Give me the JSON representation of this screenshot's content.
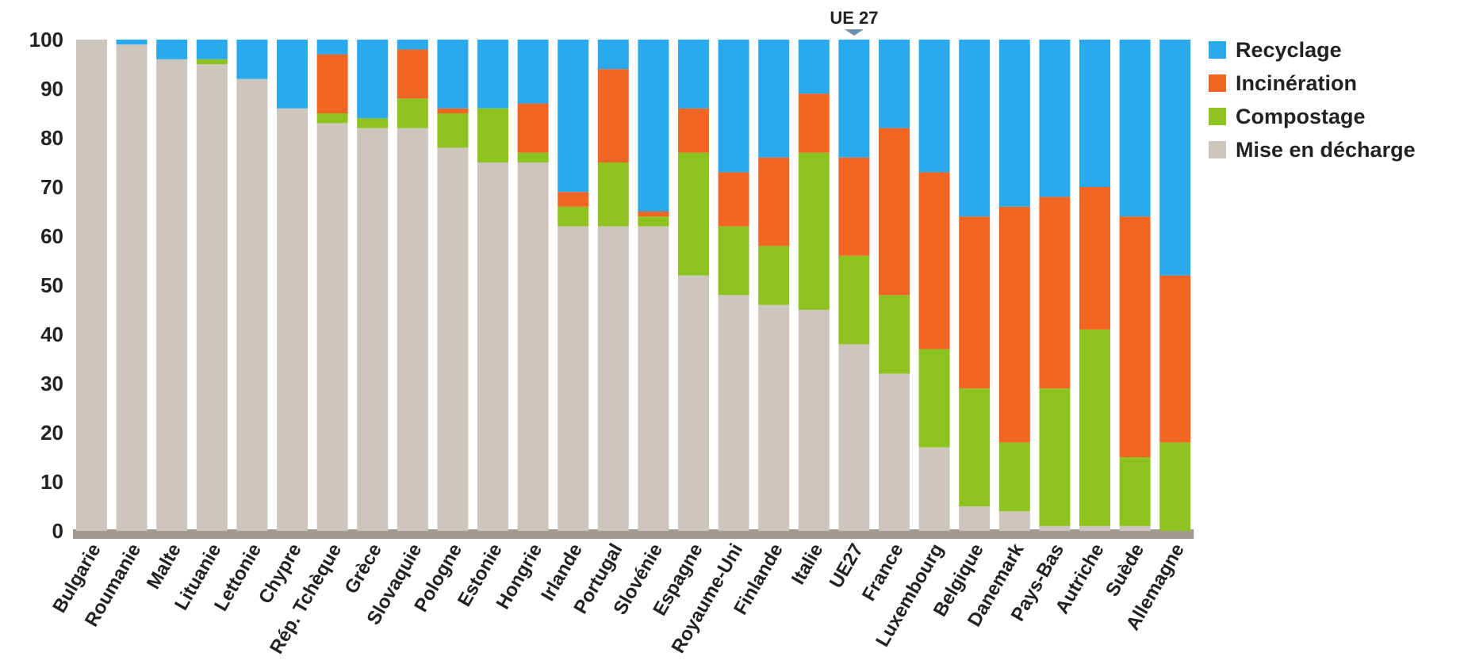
{
  "chart_data": {
    "type": "bar",
    "stacked": true,
    "title": "",
    "xlabel": "",
    "ylabel": "",
    "ylim": [
      0,
      100
    ],
    "yticks": [
      0,
      10,
      20,
      30,
      40,
      50,
      60,
      70,
      80,
      90,
      100
    ],
    "grid": false,
    "legend_position": "right",
    "annotation": {
      "text": "UE 27",
      "category": "UE27"
    },
    "colors": {
      "Recyclage": "#2aa9ec",
      "Incinération": "#f26522",
      "Compostage": "#8dc21f",
      "Mise en décharge": "#cdc6bd",
      "axis": "#a09a92"
    },
    "categories": [
      "Bulgarie",
      "Roumanie",
      "Malte",
      "Lituanie",
      "Lettonie",
      "Chypre",
      "Rép. Tchèque",
      "Grèce",
      "Slovaquie",
      "Pologne",
      "Estonie",
      "Hongrie",
      "Irlande",
      "Portugal",
      "Slovénie",
      "Espagne",
      "Royaume-Uni",
      "Finlande",
      "Italie",
      "UE27",
      "France",
      "Luxembourg",
      "Belgique",
      "Danemark",
      "Pays-Bas",
      "Autriche",
      "Suède",
      "Allemagne"
    ],
    "series": [
      {
        "name": "Mise en décharge",
        "values": [
          100,
          99,
          96,
          95,
          92,
          86,
          83,
          82,
          82,
          78,
          75,
          75,
          62,
          62,
          62,
          52,
          48,
          46,
          45,
          38,
          32,
          17,
          5,
          4,
          1,
          1,
          1,
          0
        ]
      },
      {
        "name": "Compostage",
        "values": [
          0,
          0,
          0,
          1,
          0,
          0,
          2,
          2,
          6,
          7,
          11,
          2,
          4,
          13,
          2,
          25,
          14,
          12,
          32,
          18,
          16,
          20,
          24,
          14,
          28,
          40,
          14,
          18
        ]
      },
      {
        "name": "Incinération",
        "values": [
          0,
          0,
          0,
          0,
          0,
          0,
          12,
          0,
          10,
          1,
          0,
          10,
          3,
          19,
          1,
          9,
          11,
          18,
          12,
          20,
          34,
          36,
          35,
          48,
          39,
          29,
          49,
          34
        ]
      },
      {
        "name": "Recyclage",
        "values": [
          0,
          1,
          4,
          4,
          8,
          14,
          3,
          16,
          2,
          14,
          14,
          13,
          31,
          6,
          35,
          14,
          27,
          24,
          11,
          24,
          18,
          27,
          36,
          34,
          32,
          30,
          36,
          48
        ]
      }
    ]
  }
}
